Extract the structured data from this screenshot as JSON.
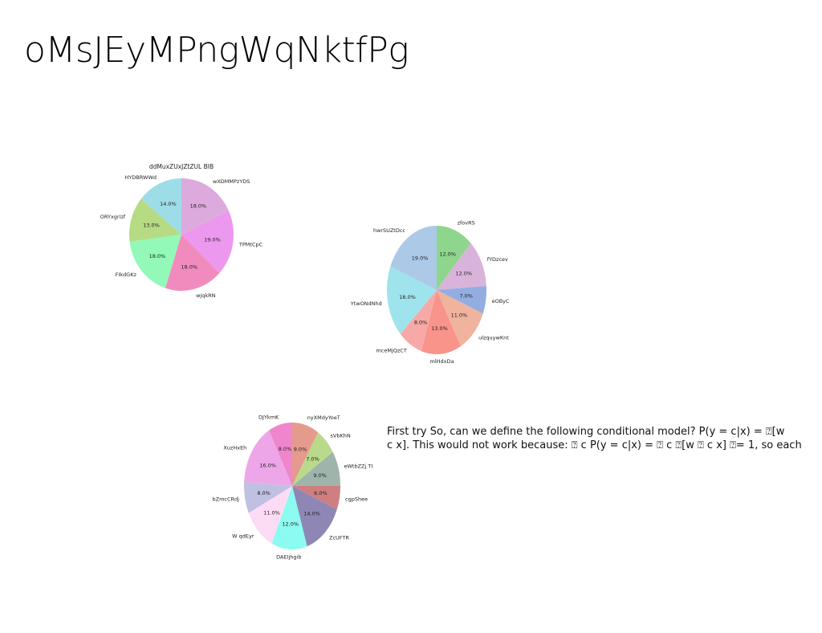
{
  "slide": {
    "title": "oMsJEyMPngWqNktfPg",
    "body_text": "First try So, can we define the following conditional model? P(y = c|x) = ⍰[w\nc x]. This would not work because: ⍰ c P(y = c|x) = ⍰ c ⍰[w ⍰ c x] ⍰= 1, so each"
  },
  "chart_data": [
    {
      "type": "pie",
      "title": "ddMuxZUxJZtZUL BIB",
      "categories": [
        "wXDMMPzYDS",
        "TPMtCpC",
        "wjqkRN",
        "FIkdGKz",
        "ORYxgrizf",
        "HYDBRWWd"
      ],
      "values": [
        18.0,
        19.0,
        18.0,
        18.0,
        13.0,
        14.0
      ],
      "labels": [
        "18.0%",
        "19.0%",
        "18.0%",
        "18.0%",
        "13.0%",
        "14.0%"
      ],
      "colors": [
        "#dcaadc",
        "#ec98ee",
        "#f28bbd",
        "#92f9b8",
        "#b6db84",
        "#9ddde7"
      ],
      "start_angle_deg": 90,
      "direction": "clockwise"
    },
    {
      "type": "pie",
      "title": "",
      "categories": [
        "zfovRS",
        "fYDzcev",
        "eOByC",
        "ulzquywKnt",
        "mlHdxDa",
        "mceMjQzCT",
        "YtwONdNhd",
        "hwrSUZtDcc"
      ],
      "values": [
        12.0,
        12.0,
        7.0,
        11.0,
        13.0,
        8.0,
        18.0,
        19.0
      ],
      "labels": [
        "12.0%",
        "12.0%",
        "7.0%",
        "11.0%",
        "13.0%",
        "8.0%",
        "18.0%",
        "19.0%"
      ],
      "colors": [
        "#8ed58d",
        "#d9b4da",
        "#93ade2",
        "#f0b39d",
        "#f8948a",
        "#f7a9a8",
        "#9fe3ed",
        "#acc9e7"
      ],
      "start_angle_deg": 90,
      "direction": "clockwise"
    },
    {
      "type": "pie",
      "title": "",
      "categories": [
        "nyXMdyYoeT",
        "sVbKhN",
        "eWtbZZj TI",
        "cgpShee",
        "ZcUFTR",
        "DAEIjhgib",
        "W qdEyr",
        "bZmcCRdj",
        "XuzHxEh",
        "DJYkmK"
      ],
      "values": [
        9.0,
        7.0,
        9.0,
        6.0,
        14.0,
        12.0,
        11.0,
        8.0,
        16.0,
        8.0
      ],
      "labels": [
        "9.0%",
        "7.0%",
        "9.0%",
        "6.0%",
        "14.0%",
        "12.0%",
        "11.0%",
        "8.0%",
        "16.0%",
        "8.0%"
      ],
      "colors": [
        "#e59a8e",
        "#b9da8b",
        "#9fb4aa",
        "#cf7f80",
        "#8e87b6",
        "#8cfbf0",
        "#fcdcf5",
        "#bfc0e2",
        "#eda7e8",
        "#ef86cd"
      ],
      "start_angle_deg": 90,
      "direction": "clockwise"
    }
  ]
}
